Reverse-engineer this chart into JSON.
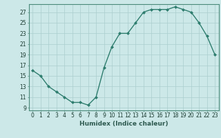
{
  "x": [
    0,
    1,
    2,
    3,
    4,
    5,
    6,
    7,
    8,
    9,
    10,
    11,
    12,
    13,
    14,
    15,
    16,
    17,
    18,
    19,
    20,
    21,
    22,
    23
  ],
  "y": [
    16,
    15,
    13,
    12,
    11,
    10,
    10,
    9.5,
    11,
    16.5,
    20.5,
    23,
    23,
    25,
    27,
    27.5,
    27.5,
    27.5,
    28,
    27.5,
    27,
    25,
    22.5,
    19
  ],
  "xlabel": "Humidex (Indice chaleur)",
  "xlim": [
    -0.5,
    23.5
  ],
  "ylim": [
    8.5,
    28.5
  ],
  "yticks": [
    9,
    11,
    13,
    15,
    17,
    19,
    21,
    23,
    25,
    27
  ],
  "xtick_labels": [
    "0",
    "1",
    "2",
    "3",
    "4",
    "5",
    "6",
    "7",
    "8",
    "9",
    "10",
    "11",
    "12",
    "13",
    "14",
    "15",
    "16",
    "17",
    "18",
    "19",
    "20",
    "21",
    "22",
    "23"
  ],
  "line_color": "#2e7d6e",
  "marker_color": "#2e7d6e",
  "bg_color": "#cce8e8",
  "grid_color": "#aacece",
  "border_color": "#4a8a7a",
  "xlabel_color": "#2e5a50",
  "tick_color": "#1a3a30",
  "tick_fontsize": 5.5,
  "xlabel_fontsize": 6.5
}
